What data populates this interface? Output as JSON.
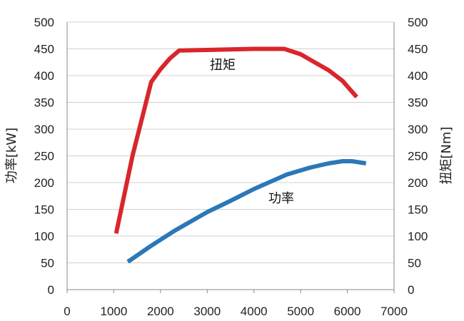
{
  "chart_data": {
    "type": "line",
    "title": "",
    "xlabel": "",
    "ylabel_left": "功率[kW]",
    "ylabel_right": "扭矩[Nm]",
    "xlim": [
      0,
      7000
    ],
    "ylim": [
      0,
      500
    ],
    "y2lim": [
      0,
      500
    ],
    "x_ticks": [
      "0",
      "1000",
      "2000",
      "3000",
      "4000",
      "5000",
      "6000",
      "7000"
    ],
    "y_ticks": [
      "0",
      "50",
      "100",
      "150",
      "200",
      "250",
      "300",
      "350",
      "400",
      "450",
      "500"
    ],
    "y2_ticks": [
      "0",
      "50",
      "100",
      "150",
      "200",
      "250",
      "300",
      "350",
      "400",
      "450",
      "500"
    ],
    "grid": true,
    "series": [
      {
        "name": "扭矩",
        "axis": "right",
        "color": "#d9262b",
        "points": [
          [
            1050,
            105
          ],
          [
            1400,
            250
          ],
          [
            1800,
            388
          ],
          [
            2000,
            412
          ],
          [
            2200,
            432
          ],
          [
            2400,
            447
          ],
          [
            3000,
            448
          ],
          [
            4000,
            450
          ],
          [
            4650,
            450
          ],
          [
            5000,
            440
          ],
          [
            5300,
            425
          ],
          [
            5600,
            410
          ],
          [
            5900,
            390
          ],
          [
            6050,
            375
          ],
          [
            6200,
            360
          ]
        ]
      },
      {
        "name": "功率",
        "axis": "left",
        "color": "#2b78b8",
        "points": [
          [
            1300,
            52
          ],
          [
            1800,
            82
          ],
          [
            2300,
            110
          ],
          [
            3000,
            145
          ],
          [
            3500,
            166
          ],
          [
            4000,
            188
          ],
          [
            4700,
            215
          ],
          [
            5200,
            228
          ],
          [
            5600,
            236
          ],
          [
            5900,
            240
          ],
          [
            6100,
            240
          ],
          [
            6400,
            236
          ]
        ]
      }
    ]
  }
}
